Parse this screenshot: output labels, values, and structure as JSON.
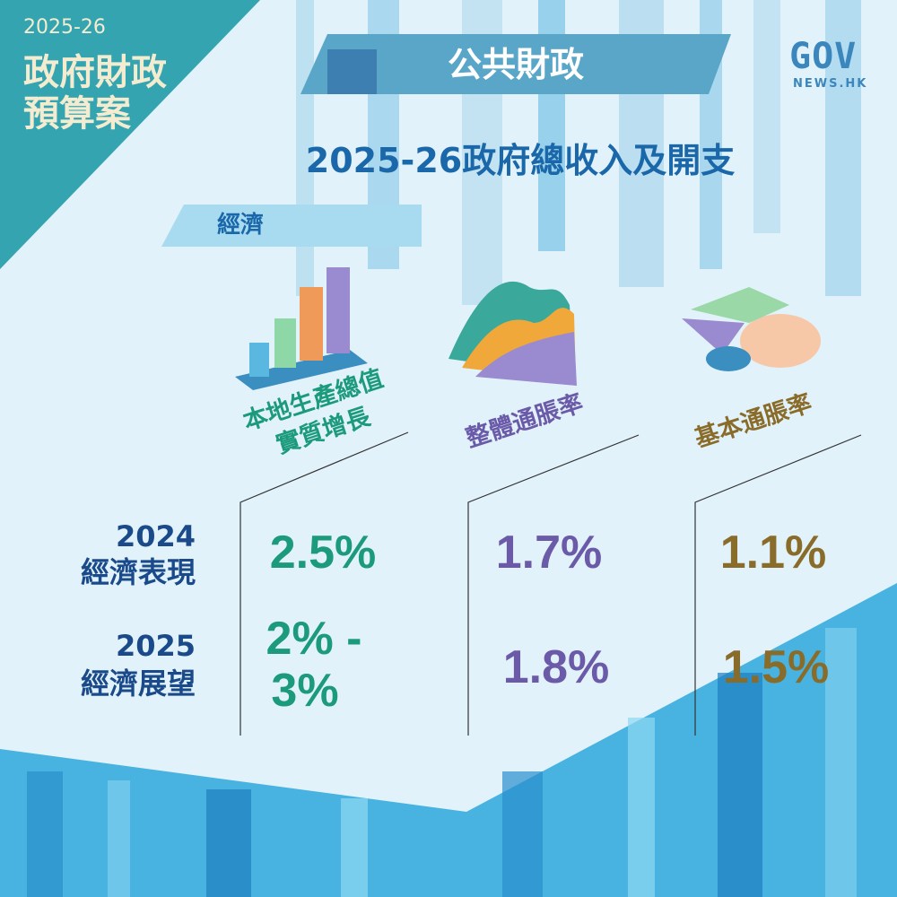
{
  "corner": {
    "year": "2025-26",
    "line1": "政府財政",
    "line2": "預算案"
  },
  "banner": {
    "label": "公共財政"
  },
  "logo": {
    "main": "GOV",
    "sub": "NEWS.HK"
  },
  "title": "2025-26政府總收入及開支",
  "section": "經濟",
  "columns": [
    {
      "line1": "本地生產總值",
      "line2": "實質增長",
      "icon": "bar-chart-icon",
      "color": "#1b9a7c"
    },
    {
      "line1": "整體通脹率",
      "icon": "area-chart-icon",
      "color": "#6a5aa8"
    },
    {
      "line1": "基本通脹率",
      "icon": "pie-chart-icon",
      "color": "#8a6c2a"
    }
  ],
  "rows": [
    {
      "year": "2024",
      "label": "經濟表現",
      "values": [
        "2.5%",
        "1.7%",
        "1.1%"
      ]
    },
    {
      "year": "2025",
      "label": "經濟展望",
      "values_first": [
        "2% -",
        "3%"
      ],
      "values": [
        "2% - 3%",
        "1.8%",
        "1.5%"
      ]
    }
  ],
  "colors": {
    "background": "#e2f2fa",
    "title": "#1a68aa",
    "row_label": "#1a4a8a"
  }
}
